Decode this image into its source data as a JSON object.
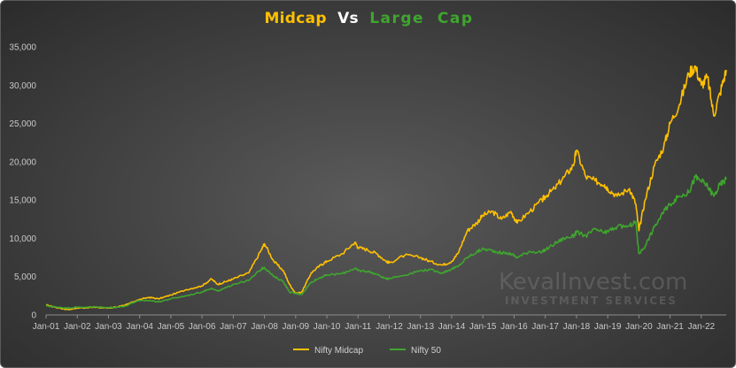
{
  "chart_data": {
    "type": "line",
    "title": {
      "part1": "Midcap",
      "part2": "Vs",
      "part3": "Large  Cap"
    },
    "xlabel": "",
    "ylabel": "",
    "ylim": [
      0,
      35000
    ],
    "yticks": [
      0,
      5000,
      10000,
      15000,
      20000,
      25000,
      30000,
      35000
    ],
    "ytick_labels": [
      "0",
      "5,000",
      "10,000",
      "15,000",
      "20,000",
      "25,000",
      "30,000",
      "35,000"
    ],
    "xlim": [
      2001.0,
      2022.8
    ],
    "xtick_labels": [
      "Jan-01",
      "Jan-02",
      "Jan-03",
      "Jan-04",
      "Jan-05",
      "Jan-06",
      "Jan-07",
      "Jan-08",
      "Jan-09",
      "Jan-10",
      "Jan-11",
      "Jan-12",
      "Jan-13",
      "Jan-14",
      "Jan-15",
      "Jan-16",
      "Jan-17",
      "Jan-18",
      "Jan-19",
      "Jan-20",
      "Jan-21",
      "Jan-22"
    ],
    "xtick_values": [
      2001,
      2002,
      2003,
      2004,
      2005,
      2006,
      2007,
      2008,
      2009,
      2010,
      2011,
      2012,
      2013,
      2014,
      2015,
      2016,
      2017,
      2018,
      2019,
      2020,
      2021,
      2022
    ],
    "grid": false,
    "legend_position": "bottom-center",
    "series": [
      {
        "name": "Nifty Midcap",
        "color": "#ffc000",
        "x": [
          2001.0,
          2001.3,
          2001.7,
          2002.0,
          2002.5,
          2003.0,
          2003.5,
          2003.9,
          2004.3,
          2004.6,
          2005.0,
          2005.5,
          2006.0,
          2006.3,
          2006.5,
          2006.8,
          2007.0,
          2007.5,
          2007.9,
          2008.0,
          2008.3,
          2008.6,
          2008.8,
          2009.0,
          2009.2,
          2009.5,
          2009.8,
          2010.0,
          2010.5,
          2010.9,
          2011.0,
          2011.3,
          2011.6,
          2011.9,
          2012.0,
          2012.5,
          2013.0,
          2013.3,
          2013.7,
          2014.0,
          2014.2,
          2014.5,
          2014.8,
          2015.0,
          2015.3,
          2015.6,
          2015.9,
          2016.1,
          2016.5,
          2016.9,
          2017.0,
          2017.3,
          2017.6,
          2017.9,
          2018.0,
          2018.3,
          2018.6,
          2018.9,
          2019.0,
          2019.3,
          2019.7,
          2019.9,
          2020.0,
          2020.2,
          2020.5,
          2020.8,
          2021.0,
          2021.3,
          2021.6,
          2021.8,
          2022.0,
          2022.2,
          2022.4,
          2022.6,
          2022.8
        ],
        "values": [
          1300,
          1000,
          700,
          900,
          1000,
          900,
          1200,
          1900,
          2300,
          2100,
          2600,
          3300,
          3800,
          4700,
          4000,
          4400,
          4700,
          5500,
          8500,
          9300,
          7000,
          5800,
          4000,
          2800,
          3000,
          5500,
          6500,
          7000,
          8000,
          9500,
          8800,
          8500,
          8000,
          7000,
          6800,
          7800,
          7500,
          7000,
          6500,
          7000,
          8000,
          11000,
          12000,
          13000,
          13500,
          12500,
          13500,
          12000,
          13500,
          15000,
          15500,
          16500,
          18000,
          19500,
          21500,
          18000,
          17500,
          17000,
          16500,
          15500,
          16500,
          14500,
          11000,
          15000,
          19500,
          22000,
          25000,
          27500,
          31500,
          32500,
          30000,
          31000,
          26000,
          29000,
          32000
        ]
      },
      {
        "name": "Nifty 50",
        "color": "#3fa52e",
        "x": [
          2001.0,
          2001.3,
          2001.7,
          2002.0,
          2002.5,
          2003.0,
          2003.5,
          2003.9,
          2004.3,
          2004.6,
          2005.0,
          2005.5,
          2006.0,
          2006.3,
          2006.5,
          2006.8,
          2007.0,
          2007.5,
          2007.9,
          2008.0,
          2008.3,
          2008.6,
          2008.8,
          2009.0,
          2009.2,
          2009.5,
          2009.8,
          2010.0,
          2010.5,
          2010.9,
          2011.0,
          2011.3,
          2011.6,
          2011.9,
          2012.0,
          2012.5,
          2013.0,
          2013.3,
          2013.7,
          2014.0,
          2014.2,
          2014.5,
          2014.8,
          2015.0,
          2015.3,
          2015.6,
          2015.9,
          2016.1,
          2016.5,
          2016.9,
          2017.0,
          2017.3,
          2017.6,
          2017.9,
          2018.0,
          2018.3,
          2018.6,
          2018.9,
          2019.0,
          2019.3,
          2019.7,
          2019.9,
          2020.0,
          2020.2,
          2020.5,
          2020.8,
          2021.0,
          2021.3,
          2021.6,
          2021.8,
          2022.0,
          2022.2,
          2022.4,
          2022.6,
          2022.8
        ],
        "values": [
          1200,
          1050,
          900,
          1000,
          1050,
          950,
          1100,
          1800,
          1900,
          1700,
          2100,
          2500,
          3000,
          3500,
          3100,
          3600,
          4000,
          4500,
          6000,
          6200,
          5000,
          4400,
          3000,
          2800,
          2700,
          4300,
          4900,
          5200,
          5400,
          6100,
          5800,
          5700,
          5300,
          4700,
          4800,
          5200,
          5800,
          5900,
          5500,
          6000,
          6300,
          7500,
          8200,
          8600,
          8400,
          8100,
          8000,
          7500,
          8300,
          8200,
          8500,
          9300,
          10000,
          10300,
          10800,
          10300,
          11200,
          10700,
          10900,
          11500,
          11600,
          12200,
          8000,
          9000,
          11500,
          13500,
          14500,
          15500,
          16000,
          18000,
          17500,
          16800,
          15500,
          17000,
          17700
        ]
      }
    ],
    "legend": {
      "items": [
        "Nifty Midcap",
        "Nifty 50"
      ]
    },
    "watermark": {
      "line1": "KevalInvest.com",
      "line2": "INVESTMENT SERVICES"
    }
  }
}
